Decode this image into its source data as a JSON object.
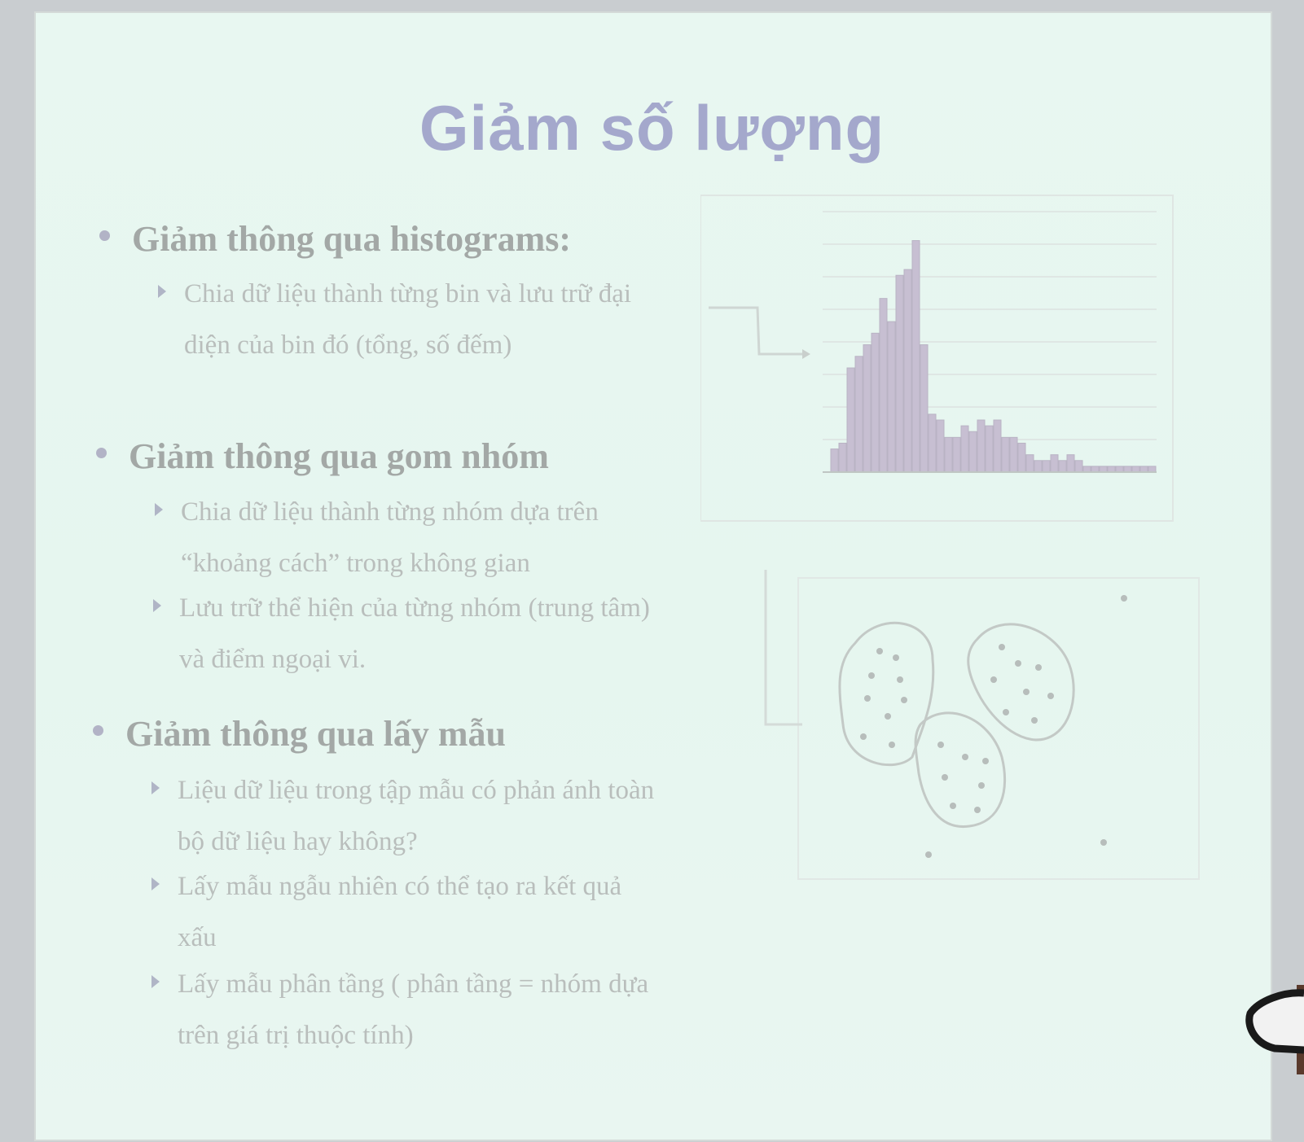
{
  "slide": {
    "title": "Giảm số lượng",
    "sections": [
      {
        "heading": "Giảm thông qua histograms:",
        "bullets": [
          [
            "Chia dữ liệu thành từng bin và lưu trữ đại",
            "diện của bin đó (tổng, số đếm)"
          ]
        ]
      },
      {
        "heading": "Giảm thông qua gom nhóm",
        "bullets": [
          [
            "Chia dữ liệu thành từng nhóm dựa trên",
            "“khoảng cách” trong không gian"
          ],
          [
            "Lưu trữ thể hiện của từng nhóm (trung tâm)",
            "và điểm ngoại vi."
          ]
        ]
      },
      {
        "heading": "Giảm thông qua lấy mẫu",
        "bullets": [
          [
            "Liệu dữ liệu trong tập mẫu có phản ánh toàn",
            "bộ dữ liệu hay không?"
          ],
          [
            "Lấy mẫu ngẫu nhiên có thể tạo ra kết quả",
            "xấu"
          ],
          [
            "Lấy mẫu phân tầng ( phân tầng = nhóm dựa",
            "trên giá trị thuộc tính)"
          ]
        ]
      }
    ]
  },
  "chart_data": {
    "type": "bar",
    "values": [
      4,
      5,
      18,
      20,
      22,
      24,
      30,
      26,
      34,
      35,
      40,
      22,
      10,
      9,
      6,
      6,
      8,
      7,
      9,
      8,
      9,
      6,
      6,
      5,
      3,
      2,
      2,
      3,
      2,
      3,
      2,
      1,
      1,
      1,
      1,
      1,
      1,
      1,
      1,
      1
    ],
    "bar_color": "#c7bfd2",
    "ylim": [
      0,
      45
    ],
    "grid": true
  },
  "colors": {
    "title": "#a4a8cc",
    "heading": "#a3a8a6",
    "body": "#b9bebc",
    "background": "#e7f6f0"
  }
}
